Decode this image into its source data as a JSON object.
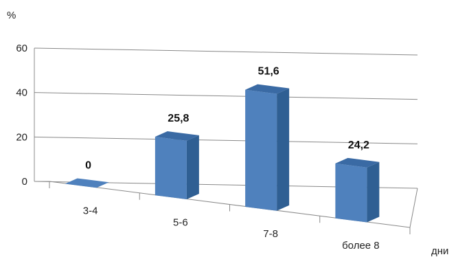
{
  "chart_data": {
    "type": "bar",
    "title": "",
    "ylabel": "%",
    "xlabel": "дни",
    "ylim": [
      0,
      60
    ],
    "yticks": [
      0,
      20,
      40,
      60
    ],
    "grid": true,
    "legend": "none",
    "categories": [
      "3-4",
      "5-6",
      "7-8",
      "более 8"
    ],
    "series": [
      {
        "values": [
          0,
          25.8,
          51.6,
          24.2
        ],
        "labels": [
          "0",
          "25,8",
          "51,6",
          "24,2"
        ]
      }
    ],
    "colors": {
      "bar_front": "#4f81bd",
      "bar_side": "#2f5f93",
      "bar_top": "#3a6aa4",
      "grid": "#888888"
    }
  }
}
